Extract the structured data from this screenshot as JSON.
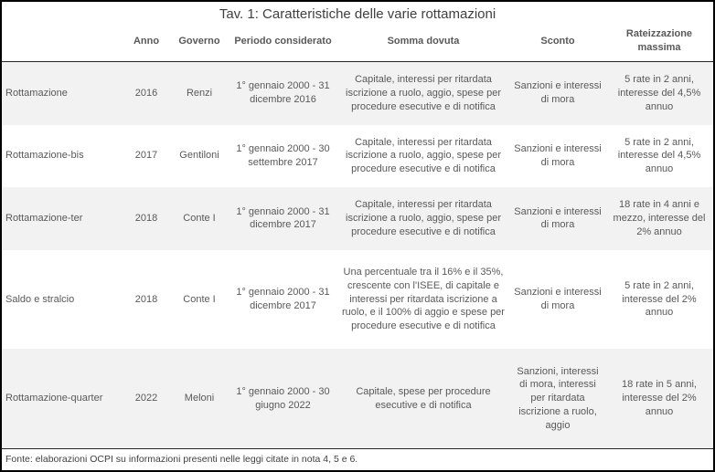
{
  "title": "Tav. 1: Caratteristiche delle varie rottamazioni",
  "colors": {
    "border": "#000000",
    "row_alternate": "#f2f2f2",
    "text": "#595959"
  },
  "table": {
    "headers": {
      "name": "",
      "anno": "Anno",
      "governo": "Governo",
      "periodo": "Periodo considerato",
      "somma": "Somma dovuta",
      "sconto": "Sconto",
      "rate": "Rateizzazione massima"
    },
    "rows": [
      {
        "name": "Rottamazione",
        "anno": "2016",
        "governo": "Renzi",
        "periodo": "1° gennaio 2000 - 31 dicembre 2016",
        "somma": "Capitale, interessi per ritardata iscrizione a ruolo, aggio, spese per procedure esecutive e di notifica",
        "sconto": "Sanzioni e interessi di mora",
        "rate": "5 rate in 2 anni, interesse del 4,5% annuo"
      },
      {
        "name": "Rottamazione-bis",
        "anno": "2017",
        "governo": "Gentiloni",
        "periodo": "1° gennaio 2000 - 30 settembre 2017",
        "somma": "Capitale, interessi per ritardata iscrizione a ruolo, aggio, spese per procedure esecutive e di notifica",
        "sconto": "Sanzioni e interessi di mora",
        "rate": "5 rate in 2 anni, interesse del 4,5% annuo"
      },
      {
        "name": "Rottamazione-ter",
        "anno": "2018",
        "governo": "Conte I",
        "periodo": "1° gennaio 2000 - 31 dicembre 2017",
        "somma": "Capitale, interessi per ritardata iscrizione a ruolo, aggio, spese per procedure esecutive e di notifica",
        "sconto": "Sanzioni e interessi di mora",
        "rate": "18 rate in 4 anni e mezzo, interesse del 2% annuo"
      },
      {
        "name": "Saldo e stralcio",
        "anno": "2018",
        "governo": "Conte I",
        "periodo": "1° gennaio 2000 - 31 dicembre 2017",
        "somma": "Una percentuale tra il 16% e il 35%, crescente con l'ISEE, di capitale e interessi per ritardata iscrizione a ruolo, e il 100% di aggio e spese per procedure esecutive e di notifica",
        "sconto": "Sanzioni e interessi di mora",
        "rate": "5 rate in 2 anni, interesse del 2% annuo"
      },
      {
        "name": "Rottamazione-quarter",
        "anno": "2022",
        "governo": "Meloni",
        "periodo": "1° gennaio 2000 - 30 giugno 2022",
        "somma": "Capitale, spese per procedure esecutive e di notifica",
        "sconto": "Sanzioni, interessi di mora, interessi per ritardata iscrizione a ruolo, aggio",
        "rate": "18 rate in 5 anni, interesse del 2% annuo"
      }
    ]
  },
  "footer": "Fonte: elaborazioni OCPI su informazioni presenti nelle leggi citate in nota 4, 5 e 6."
}
